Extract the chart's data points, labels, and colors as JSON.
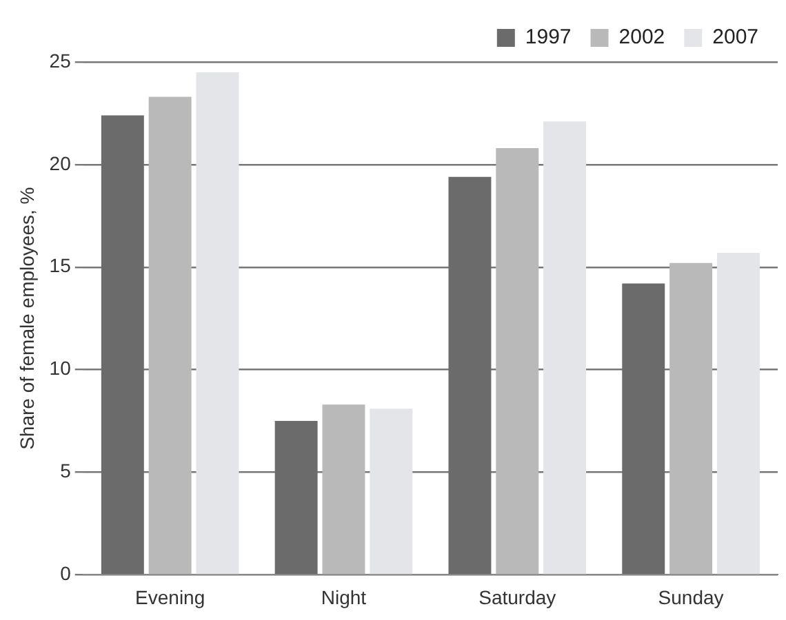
{
  "chart_data": {
    "type": "bar",
    "ylabel": "Share of female employees, %",
    "categories": [
      "Evening",
      "Night",
      "Saturday",
      "Sunday"
    ],
    "series": [
      {
        "name": "1997",
        "color": "#6b6b6b",
        "values": [
          22.4,
          7.5,
          19.4,
          14.2
        ]
      },
      {
        "name": "2002",
        "color": "#b9b9b9",
        "values": [
          23.3,
          8.3,
          20.8,
          15.2
        ]
      },
      {
        "name": "2007",
        "color": "#e3e5e8",
        "values": [
          24.5,
          8.1,
          22.1,
          15.7
        ]
      }
    ],
    "ylim": [
      0,
      25
    ],
    "yticks": [
      0,
      5,
      10,
      15,
      20,
      25
    ],
    "grid": "y",
    "legend": "top"
  }
}
